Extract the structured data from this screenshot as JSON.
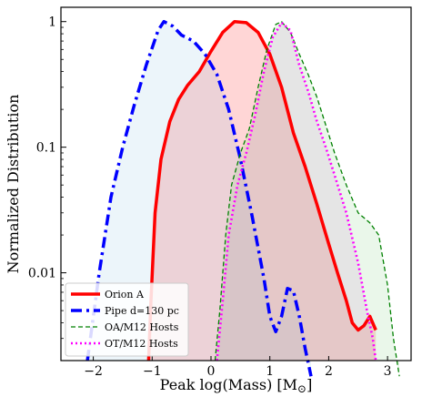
{
  "chart_data": {
    "type": "area",
    "xlabel": "Peak log(Mass) [M",
    "xlabel_symbol": "⊙",
    "xlabel_close": "]",
    "ylabel": "Normalized Distribution",
    "xlim": [
      -2.55,
      3.4
    ],
    "ylim": [
      0.002,
      1.3
    ],
    "yscale": "log",
    "grid": false,
    "legend_position": "bottom-left",
    "x_ticks": [
      -2,
      -1,
      0,
      1,
      2,
      3
    ],
    "x_tick_labels": [
      "−2",
      "−1",
      "0",
      "1",
      "2",
      "3"
    ],
    "y_ticks": [
      0.01,
      0.1,
      1
    ],
    "y_tick_labels": [
      "0.01",
      "0.1",
      "1"
    ],
    "series": [
      {
        "name": "Orion A",
        "color": "#ff0000",
        "fill": "#ff0000",
        "line": "solid",
        "width": 3.5,
        "x": [
          -1.06,
          -1.02,
          -0.95,
          -0.85,
          -0.7,
          -0.55,
          -0.4,
          -0.2,
          0.0,
          0.2,
          0.4,
          0.6,
          0.8,
          1.0,
          1.2,
          1.4,
          1.6,
          1.8,
          2.0,
          2.15,
          2.3,
          2.4,
          2.5,
          2.6,
          2.7,
          2.8
        ],
        "y": [
          0.002,
          0.006,
          0.03,
          0.08,
          0.16,
          0.24,
          0.31,
          0.4,
          0.58,
          0.82,
          1.0,
          0.98,
          0.82,
          0.55,
          0.3,
          0.13,
          0.07,
          0.035,
          0.017,
          0.01,
          0.006,
          0.004,
          0.0035,
          0.0038,
          0.0045,
          0.0035
        ]
      },
      {
        "name": "Pipe d=130 pc",
        "color": "#0000ff",
        "fill": "#87bfe0",
        "line": "dashdot",
        "width": 3.5,
        "x": [
          -2.1,
          -1.9,
          -1.7,
          -1.5,
          -1.3,
          -1.1,
          -0.9,
          -0.8,
          -0.65,
          -0.5,
          -0.3,
          -0.1,
          0.1,
          0.3,
          0.5,
          0.7,
          0.9,
          1.0,
          1.1,
          1.2,
          1.3,
          1.4,
          1.5,
          1.6,
          1.7
        ],
        "y": [
          0.002,
          0.01,
          0.04,
          0.1,
          0.22,
          0.45,
          0.85,
          1.0,
          0.92,
          0.78,
          0.7,
          0.55,
          0.38,
          0.2,
          0.08,
          0.028,
          0.009,
          0.0045,
          0.0034,
          0.0045,
          0.0075,
          0.0072,
          0.0045,
          0.0025,
          0.0015
        ]
      },
      {
        "name": "OA/M12 Hosts",
        "color": "#008000",
        "fill": "#7ccf7c",
        "line": "dashed",
        "width": 1.3,
        "x": [
          0.07,
          0.15,
          0.25,
          0.35,
          0.5,
          0.65,
          0.8,
          0.95,
          1.1,
          1.2,
          1.35,
          1.5,
          1.65,
          1.8,
          1.95,
          2.1,
          2.3,
          2.5,
          2.7,
          2.85,
          3.0,
          3.1,
          3.2
        ],
        "y": [
          0.002,
          0.005,
          0.02,
          0.05,
          0.09,
          0.14,
          0.3,
          0.6,
          0.95,
          1.0,
          0.82,
          0.55,
          0.38,
          0.25,
          0.15,
          0.09,
          0.05,
          0.03,
          0.025,
          0.02,
          0.008,
          0.003,
          0.0015
        ]
      },
      {
        "name": "OT/M12 Hosts",
        "color": "#ff00ff",
        "fill": "#d08ad0",
        "line": "dotted",
        "width": 2.6,
        "x": [
          0.1,
          0.2,
          0.3,
          0.45,
          0.6,
          0.75,
          0.9,
          1.05,
          1.2,
          1.35,
          1.5,
          1.65,
          1.8,
          1.95,
          2.1,
          2.3,
          2.5,
          2.65,
          2.75,
          2.8
        ],
        "y": [
          0.002,
          0.006,
          0.02,
          0.05,
          0.09,
          0.18,
          0.4,
          0.75,
          0.98,
          0.85,
          0.45,
          0.28,
          0.16,
          0.1,
          0.06,
          0.03,
          0.012,
          0.005,
          0.003,
          0.002
        ]
      }
    ]
  }
}
